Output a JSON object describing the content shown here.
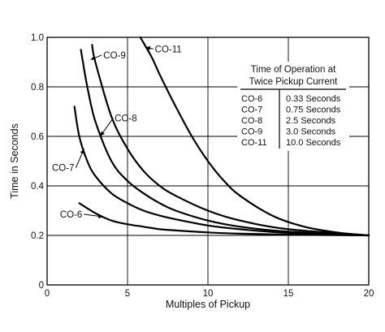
{
  "chart_data": {
    "type": "line",
    "title": "",
    "xlabel": "Multiples of Pickup",
    "ylabel": "Time in Seconds",
    "xlim": [
      0,
      20
    ],
    "ylim": [
      0,
      1.0
    ],
    "x_ticks": [
      0,
      5,
      10,
      15,
      20
    ],
    "y_ticks": [
      0,
      0.2,
      0.4,
      0.6,
      0.8,
      1.0
    ],
    "x_tick_labels": [
      "0",
      "5",
      "10",
      "15",
      "20"
    ],
    "y_tick_labels": [
      "0",
      "0.2",
      "0.4",
      "0.6",
      "0.8",
      "1.0"
    ],
    "grid": true,
    "series": [
      {
        "name": "CO-6",
        "x": [
          2.0,
          3,
          4,
          5,
          6,
          7,
          8,
          10,
          12,
          15,
          20
        ],
        "y": [
          0.33,
          0.29,
          0.26,
          0.245,
          0.235,
          0.225,
          0.22,
          0.212,
          0.207,
          0.203,
          0.2
        ]
      },
      {
        "name": "CO-7",
        "x": [
          1.7,
          2,
          2.5,
          3,
          4,
          5,
          6,
          7,
          8,
          10,
          12,
          15,
          20
        ],
        "y": [
          0.72,
          0.6,
          0.5,
          0.44,
          0.37,
          0.33,
          0.3,
          0.28,
          0.265,
          0.24,
          0.225,
          0.21,
          0.2
        ]
      },
      {
        "name": "CO-8",
        "x": [
          2.1,
          2.5,
          3,
          4,
          5,
          6,
          7,
          8,
          10,
          12,
          15,
          20
        ],
        "y": [
          0.95,
          0.8,
          0.66,
          0.5,
          0.42,
          0.37,
          0.33,
          0.3,
          0.26,
          0.235,
          0.215,
          0.2
        ]
      },
      {
        "name": "CO-9",
        "x": [
          2.8,
          3,
          4,
          5,
          6,
          7,
          8,
          10,
          12,
          15,
          20
        ],
        "y": [
          0.97,
          0.9,
          0.68,
          0.55,
          0.46,
          0.4,
          0.36,
          0.3,
          0.26,
          0.225,
          0.2
        ]
      },
      {
        "name": "CO-11",
        "x": [
          5.8,
          6.5,
          7,
          8,
          9,
          10,
          11,
          12,
          14,
          16,
          18,
          20
        ],
        "y": [
          1.0,
          0.92,
          0.85,
          0.72,
          0.6,
          0.5,
          0.42,
          0.36,
          0.28,
          0.235,
          0.212,
          0.2
        ]
      }
    ],
    "annotations": [
      {
        "text": "CO-6",
        "series": "CO-6",
        "x": 0.8,
        "y": 0.272,
        "target_x": 3.5,
        "target_y": 0.275
      },
      {
        "text": "CO-7",
        "series": "CO-7",
        "x": 0.3,
        "y": 0.46,
        "target_x": 2.3,
        "target_y": 0.55
      },
      {
        "text": "CO-8",
        "series": "CO-8",
        "x": 4.2,
        "y": 0.66,
        "target_x": 3.3,
        "target_y": 0.6
      },
      {
        "text": "CO-9",
        "series": "CO-9",
        "x": 3.5,
        "y": 0.915,
        "target_x": 2.7,
        "target_y": 0.91
      },
      {
        "text": "CO-11",
        "series": "CO-11",
        "x": 6.7,
        "y": 0.94,
        "target_x": 6.1,
        "target_y": 0.96
      }
    ],
    "table": {
      "title_lines": [
        "Time of Operation at",
        "Twice Pickup Current"
      ],
      "rows": [
        [
          "CO-6",
          "0.33 Seconds"
        ],
        [
          "CO-7",
          "0.75 Seconds"
        ],
        [
          "CO-8",
          "2.5 Seconds"
        ],
        [
          "CO-9",
          "3.0 Seconds"
        ],
        [
          "CO-11",
          "10.0 Seconds"
        ]
      ]
    }
  }
}
